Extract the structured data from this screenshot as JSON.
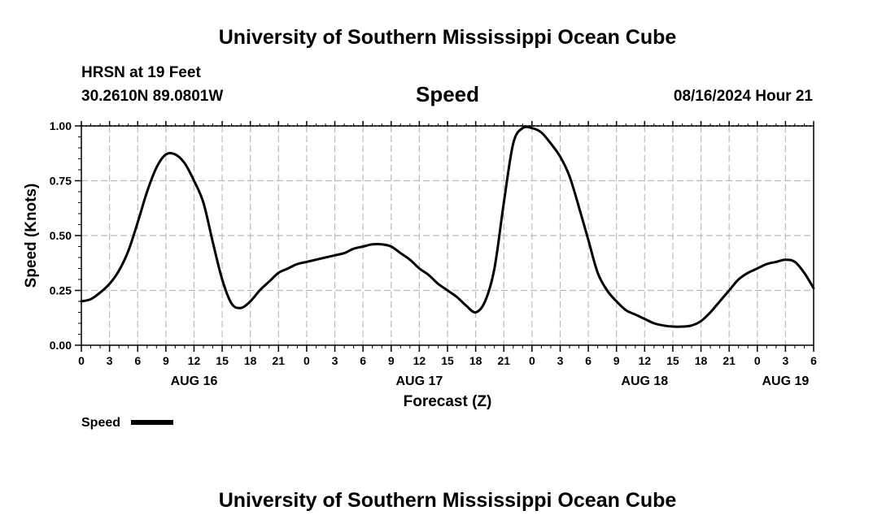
{
  "header": {
    "title": "University of Southern Mississippi Ocean Cube",
    "station": "HRSN at 19 Feet",
    "location": "30.2610N  89.0801W",
    "parameter": "Speed",
    "datetime": "08/16/2024 Hour 21"
  },
  "footer": {
    "title": "University of Southern Mississippi Ocean Cube"
  },
  "colors": {
    "line": "#000000",
    "grid": "#bbbbbb",
    "background": "#ffffff"
  },
  "chart_data": {
    "type": "line",
    "title": "Speed",
    "xlabel": "Forecast (Z)",
    "ylabel": "Speed (Knots)",
    "xlim": [
      0,
      78
    ],
    "ylim": [
      0,
      1
    ],
    "yticks": [
      0,
      0.25,
      0.5,
      0.75,
      1.0
    ],
    "ytick_labels": [
      "0.00",
      "0.25",
      "0.50",
      "0.75",
      "1.00"
    ],
    "xticks": [
      0,
      3,
      6,
      9,
      12,
      15,
      18,
      21,
      24,
      27,
      30,
      33,
      36,
      39,
      42,
      45,
      48,
      51,
      54,
      57,
      60,
      63,
      66,
      69,
      72,
      75,
      78
    ],
    "xtick_labels": [
      "0",
      "3",
      "6",
      "9",
      "12",
      "15",
      "18",
      "21",
      "0",
      "3",
      "6",
      "9",
      "12",
      "15",
      "18",
      "21",
      "0",
      "3",
      "6",
      "9",
      "12",
      "15",
      "18",
      "21",
      "0",
      "3",
      "6"
    ],
    "day_labels": [
      {
        "text": "AUG 16",
        "x": 12
      },
      {
        "text": "AUG 17",
        "x": 36
      },
      {
        "text": "AUG 18",
        "x": 60
      },
      {
        "text": "AUG 19",
        "x": 75
      }
    ],
    "grid": true,
    "legend": {
      "label": "Speed",
      "position": "bottom-left"
    },
    "series": [
      {
        "name": "Speed",
        "x": [
          0,
          1,
          2,
          3,
          4,
          5,
          6,
          7,
          8,
          9,
          10,
          11,
          12,
          13,
          14,
          15,
          16,
          17,
          18,
          19,
          20,
          21,
          22,
          23,
          24,
          25,
          26,
          27,
          28,
          29,
          30,
          31,
          32,
          33,
          34,
          35,
          36,
          37,
          38,
          39,
          40,
          41,
          42,
          43,
          44,
          45,
          46,
          47,
          48,
          49,
          50,
          51,
          52,
          53,
          54,
          55,
          56,
          57,
          58,
          59,
          60,
          61,
          62,
          63,
          64,
          65,
          66,
          67,
          68,
          69,
          70,
          71,
          72,
          73,
          74,
          75,
          76,
          77,
          78
        ],
        "values": [
          0.2,
          0.21,
          0.24,
          0.28,
          0.34,
          0.43,
          0.56,
          0.7,
          0.81,
          0.87,
          0.87,
          0.83,
          0.75,
          0.65,
          0.47,
          0.3,
          0.19,
          0.17,
          0.2,
          0.25,
          0.29,
          0.33,
          0.35,
          0.37,
          0.38,
          0.39,
          0.4,
          0.41,
          0.42,
          0.44,
          0.45,
          0.46,
          0.46,
          0.45,
          0.42,
          0.39,
          0.35,
          0.32,
          0.28,
          0.25,
          0.22,
          0.18,
          0.15,
          0.2,
          0.35,
          0.65,
          0.92,
          0.99,
          0.99,
          0.97,
          0.92,
          0.86,
          0.77,
          0.63,
          0.48,
          0.33,
          0.25,
          0.2,
          0.16,
          0.14,
          0.12,
          0.1,
          0.09,
          0.085,
          0.085,
          0.09,
          0.11,
          0.15,
          0.2,
          0.25,
          0.3,
          0.33,
          0.35,
          0.37,
          0.38,
          0.39,
          0.38,
          0.33,
          0.26
        ]
      }
    ]
  }
}
